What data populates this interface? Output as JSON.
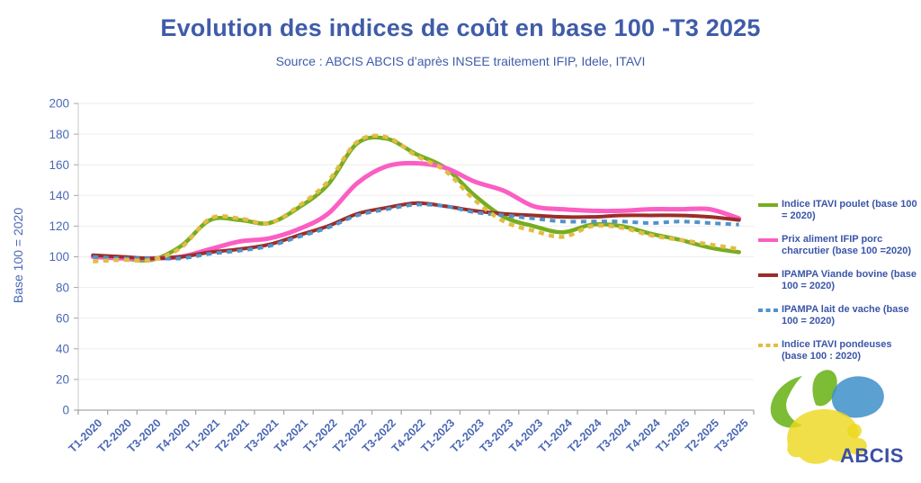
{
  "header": {
    "title": "Evolution des indices de coût en base 100 -T3 2025",
    "subtitle": "Source : ABCIS ABCIS d’après INSEE traitement IFIP, Idele, ITAVI"
  },
  "logo": {
    "text": "ABCIS"
  },
  "colors": {
    "title_blue": "#3f5ca9",
    "axis_text_blue": "#4a68b5",
    "legend_text_blue": "#3a55a8",
    "gridline": "#ededed",
    "axis_line": "#a6a6a6"
  },
  "chart_data": {
    "type": "line",
    "title": "Evolution des indices de coût en base 100 -T3 2025",
    "xlabel": "",
    "ylabel": "Base 100 = 2020",
    "ylim": [
      0,
      200
    ],
    "ytick_step": 20,
    "grid": "horizontal",
    "legend_position": "right",
    "categories": [
      "T1-2020",
      "T2-2020",
      "T3-2020",
      "T4-2020",
      "T1-2021",
      "T2-2021",
      "T3-2021",
      "T4-2021",
      "T1-2022",
      "T2-2022",
      "T3-2022",
      "T4-2022",
      "T1-2023",
      "T2-2023",
      "T3-2023",
      "T4-2023",
      "T1-2024",
      "T2-2024",
      "T3-2024",
      "T4-2024",
      "T1-2025",
      "T2-2025",
      "T3-2025"
    ],
    "series": [
      {
        "name": "Indice ITAVI poulet (base 100 = 2020)",
        "color": "#76ad21",
        "style": "solid",
        "width": 4.5,
        "values": [
          100,
          99,
          98,
          107,
          124,
          124,
          122,
          132,
          147,
          174,
          177,
          167,
          158,
          140,
          126,
          120,
          116,
          121,
          120,
          115,
          111,
          106,
          103
        ]
      },
      {
        "name": "Prix aliment IFIP porc charcutier (base 100 =2020)",
        "color": "#fb5ec3",
        "style": "solid",
        "width": 5,
        "values": [
          100,
          99,
          99,
          100,
          105,
          110,
          112,
          118,
          128,
          148,
          159,
          161,
          158,
          149,
          143,
          133,
          131,
          130,
          130,
          131,
          131,
          131,
          125
        ]
      },
      {
        "name": "IPAMPA Viande bovine (base 100 = 2020)",
        "color": "#9b2d28",
        "style": "solid",
        "width": 4,
        "values": [
          101,
          100,
          99,
          100,
          103,
          105,
          108,
          114,
          120,
          128,
          132,
          135,
          133,
          130,
          128,
          127,
          126,
          126,
          127,
          127,
          127,
          126,
          124
        ]
      },
      {
        "name": "IPAMPA lait de vache (base 100 = 2020)",
        "color": "#4f93cb",
        "style": "dashed",
        "width": 4,
        "values": [
          100,
          99,
          99,
          99,
          102,
          104,
          107,
          113,
          119,
          127,
          131,
          134,
          133,
          129,
          127,
          125,
          123,
          123,
          123,
          122,
          123,
          122,
          121
        ]
      },
      {
        "name": "Indice ITAVI pondeuses (base 100 : 2020)",
        "color": "#e3bc45",
        "style": "dashed",
        "width": 4.5,
        "values": [
          97,
          98,
          98,
          106,
          125,
          125,
          122,
          133,
          149,
          175,
          178,
          166,
          156,
          137,
          123,
          117,
          113,
          120,
          119,
          114,
          111,
          108,
          105
        ]
      }
    ]
  }
}
